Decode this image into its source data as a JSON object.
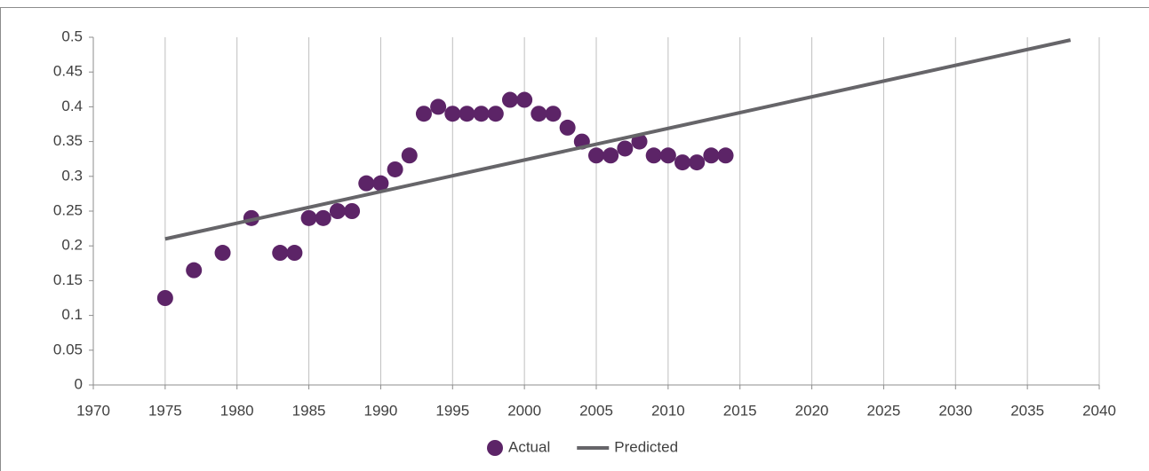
{
  "chart_data": {
    "type": "scatter",
    "series": [
      {
        "name": "Actual",
        "type": "scatter",
        "color": "#5c2467",
        "x": [
          1975,
          1977,
          1979,
          1981,
          1983,
          1984,
          1985,
          1986,
          1987,
          1988,
          1989,
          1990,
          1991,
          1992,
          1993,
          1994,
          1995,
          1996,
          1997,
          1998,
          1999,
          2000,
          2001,
          2002,
          2003,
          2004,
          2005,
          2006,
          2007,
          2008,
          2009,
          2010,
          2011,
          2012,
          2013,
          2014
        ],
        "values": [
          0.125,
          0.165,
          0.19,
          0.24,
          0.19,
          0.19,
          0.24,
          0.24,
          0.25,
          0.25,
          0.29,
          0.29,
          0.31,
          0.33,
          0.39,
          0.4,
          0.39,
          0.39,
          0.39,
          0.39,
          0.41,
          0.41,
          0.39,
          0.39,
          0.37,
          0.35,
          0.33,
          0.33,
          0.34,
          0.35,
          0.33,
          0.33,
          0.32,
          0.32,
          0.33,
          0.33
        ]
      },
      {
        "name": "Predicted",
        "type": "line",
        "color": "#666569",
        "x": [
          1975,
          2038
        ],
        "values": [
          0.21,
          0.496
        ]
      }
    ],
    "xlim": [
      1970,
      2040
    ],
    "xticks": [
      1970,
      1975,
      1980,
      1985,
      1990,
      1995,
      2000,
      2005,
      2010,
      2015,
      2020,
      2025,
      2030,
      2035,
      2040
    ],
    "ylim": [
      0,
      0.5
    ],
    "yticks": [
      0,
      0.05,
      0.1,
      0.15,
      0.2,
      0.25,
      0.3,
      0.35,
      0.4,
      0.45,
      0.5
    ],
    "grid": "x",
    "legend": "bottom"
  }
}
